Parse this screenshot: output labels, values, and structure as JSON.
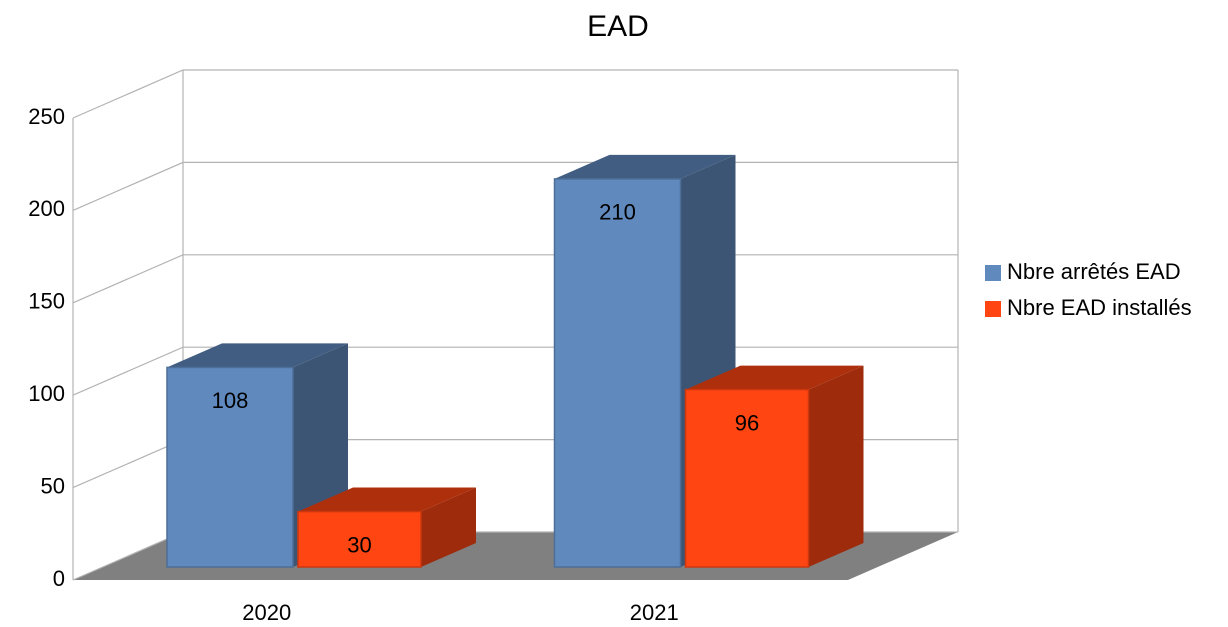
{
  "chart_data": {
    "type": "bar3d",
    "title": "EAD",
    "categories": [
      "2020",
      "2021"
    ],
    "series": [
      {
        "name": "Nbre arrêtés EAD",
        "color": "#6089bd",
        "values": [
          108,
          210
        ]
      },
      {
        "name": "Nbre EAD installés",
        "color": "#ff4512",
        "values": [
          30,
          96
        ]
      }
    ],
    "ylim": [
      0,
      250
    ],
    "yticks": [
      0,
      50,
      100,
      150,
      200,
      250
    ],
    "grid": true,
    "legend": "right"
  }
}
